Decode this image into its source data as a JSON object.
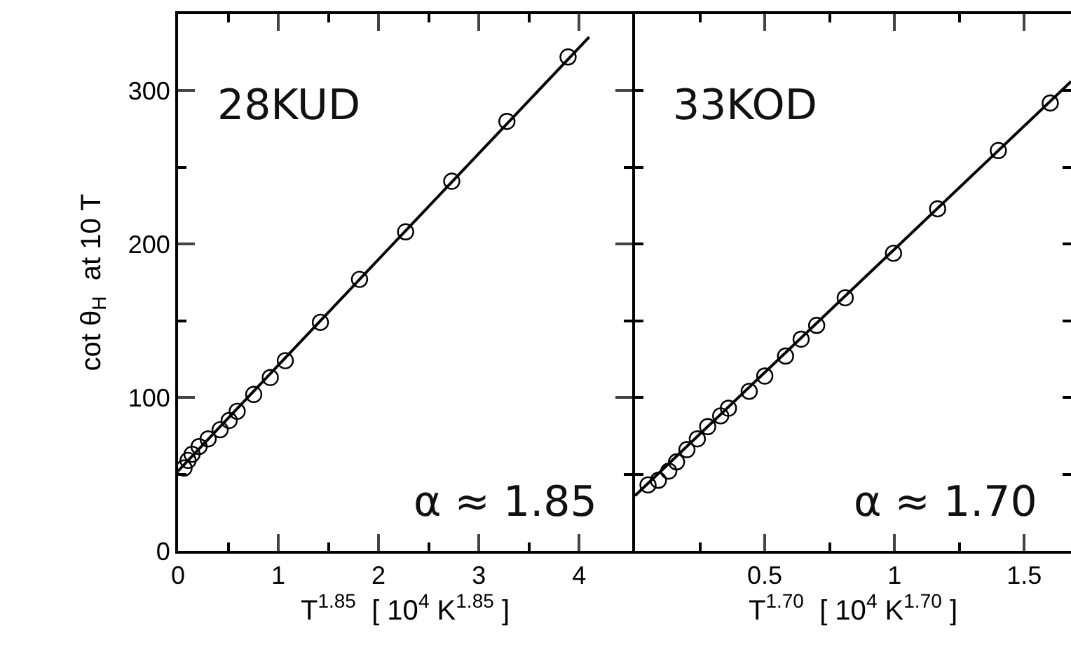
{
  "chart_data": [
    {
      "type": "scatter",
      "xlabel": "T$^{1.85}$  [ 10$^{4}$ K$^{1.85}$ ]",
      "ylabel": "cot θ$_{H}$  at 10 T",
      "annotations": [
        "28KUD",
        "α ≈ 1.85"
      ],
      "marker": "circle",
      "grid": false,
      "xlim": [
        0,
        4.53
      ],
      "ylim": [
        0,
        350
      ],
      "xticks": [
        0,
        {
          "value": 0.5,
          "label": null
        },
        1,
        {
          "value": 1.5,
          "label": null
        },
        2,
        {
          "value": 2.5,
          "label": null
        },
        3,
        {
          "value": 3.5,
          "label": null
        },
        4
      ],
      "yticks": [
        0,
        {
          "value": 50,
          "label": null
        },
        100,
        {
          "value": 150,
          "label": null
        },
        200,
        {
          "value": 250,
          "label": null
        },
        300
      ],
      "series": [
        {
          "type": "scatter",
          "color": "#000000",
          "x": [
            0.06,
            0.1,
            0.14,
            0.21,
            0.3,
            0.42,
            0.51,
            0.59,
            0.755,
            0.92,
            1.07,
            1.42,
            1.81,
            2.27,
            2.73,
            3.28,
            3.89
          ],
          "values": [
            54,
            59,
            63,
            68,
            73,
            79,
            85,
            91,
            102,
            113,
            124,
            149,
            177,
            208,
            241,
            280,
            322
          ]
        },
        {
          "type": "line",
          "color": "#000000",
          "marker": "none",
          "x": [
            0,
            4.1
          ],
          "values": [
            52,
            335
          ]
        }
      ]
    },
    {
      "type": "scatter",
      "xlabel": "T$^{1.70}$  [ 10$^{4}$ K$^{1.70}$ ]",
      "annotations": [
        "33KOD",
        "α ≈ 1.70"
      ],
      "marker": "circle",
      "grid": false,
      "tick_labels": "x",
      "xlim": [
        0,
        1.68
      ],
      "ylim": [
        0,
        350
      ],
      "xticks": [
        {
          "value": 0.25,
          "label": null
        },
        0.5,
        {
          "value": 0.75,
          "label": null
        },
        1,
        {
          "value": 1.25,
          "label": null
        },
        1.5
      ],
      "yticks": [
        {
          "value": 0,
          "label": null
        },
        {
          "value": 50,
          "label": null
        },
        {
          "value": 100,
          "label": null
        },
        {
          "value": 150,
          "label": null
        },
        {
          "value": 200,
          "label": null
        },
        {
          "value": 250,
          "label": null
        },
        {
          "value": 300,
          "label": null
        }
      ],
      "series": [
        {
          "type": "scatter",
          "color": "#000000",
          "x": [
            0.05,
            0.09,
            0.13,
            0.16,
            0.2,
            0.24,
            0.28,
            0.33,
            0.36,
            0.44,
            0.5,
            0.58,
            0.64,
            0.7,
            0.81,
            0.996,
            1.166,
            1.4,
            1.6
          ],
          "values": [
            43,
            46,
            52,
            58,
            66,
            73,
            81,
            88,
            93,
            104,
            114,
            127,
            138,
            147,
            165,
            194,
            223,
            261,
            292
          ]
        },
        {
          "type": "line",
          "color": "#000000",
          "marker": "none",
          "x": [
            0,
            1.68
          ],
          "values": [
            36,
            306
          ]
        }
      ]
    }
  ]
}
